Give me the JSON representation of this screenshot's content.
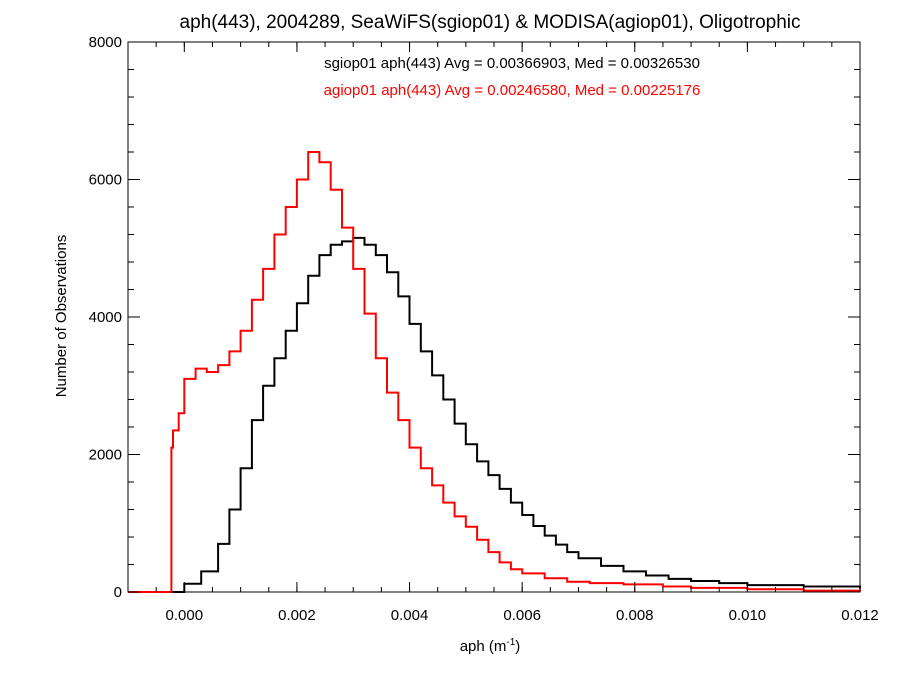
{
  "chart_data": {
    "type": "line",
    "title": "aph(443), 2004289, SeaWiFS(sgiop01) & MODISA(agiop01), Oligotrophic",
    "xlabel": "aph",
    "xlabel_unit_base": "m",
    "xlabel_unit_exponent": "-1",
    "ylabel": "Number of Observations",
    "xlim": [
      -0.001,
      0.012
    ],
    "ylim": [
      0,
      8000
    ],
    "xticks": [
      0.0,
      0.002,
      0.004,
      0.006,
      0.008,
      0.01,
      0.012
    ],
    "xtick_labels": [
      "0.000",
      "0.002",
      "0.004",
      "0.006",
      "0.008",
      "0.010",
      "0.012"
    ],
    "yticks": [
      0,
      2000,
      4000,
      6000,
      8000
    ],
    "ytick_labels": [
      "0",
      "2000",
      "4000",
      "6000",
      "8000"
    ],
    "grid": false,
    "annotations": [
      {
        "text": "sgiop01 aph(443) Avg = 0.00366903, Med = 0.00326530",
        "color": "#000000"
      },
      {
        "text": "agiop01 aph(443) Avg = 0.00246580, Med = 0.00225176",
        "color": "#ff0000"
      }
    ],
    "series": [
      {
        "color": "#000000",
        "style": "step",
        "points": [
          [
            -0.001,
            0
          ],
          [
            -0.0003,
            0
          ],
          [
            0.0,
            120
          ],
          [
            0.0003,
            300
          ],
          [
            0.0006,
            700
          ],
          [
            0.0008,
            1200
          ],
          [
            0.001,
            1800
          ],
          [
            0.0012,
            2500
          ],
          [
            0.0014,
            3000
          ],
          [
            0.0016,
            3400
          ],
          [
            0.0018,
            3800
          ],
          [
            0.002,
            4200
          ],
          [
            0.0022,
            4600
          ],
          [
            0.0024,
            4900
          ],
          [
            0.0026,
            5050
          ],
          [
            0.0028,
            5100
          ],
          [
            0.003,
            5150
          ],
          [
            0.0032,
            5050
          ],
          [
            0.0034,
            4900
          ],
          [
            0.0036,
            4650
          ],
          [
            0.0038,
            4300
          ],
          [
            0.004,
            3900
          ],
          [
            0.0042,
            3500
          ],
          [
            0.0044,
            3150
          ],
          [
            0.0046,
            2800
          ],
          [
            0.0048,
            2450
          ],
          [
            0.005,
            2150
          ],
          [
            0.0052,
            1900
          ],
          [
            0.0054,
            1700
          ],
          [
            0.0056,
            1500
          ],
          [
            0.0058,
            1300
          ],
          [
            0.006,
            1120
          ],
          [
            0.0062,
            960
          ],
          [
            0.0064,
            820
          ],
          [
            0.0066,
            690
          ],
          [
            0.0068,
            580
          ],
          [
            0.007,
            490
          ],
          [
            0.0074,
            380
          ],
          [
            0.0078,
            300
          ],
          [
            0.0082,
            240
          ],
          [
            0.0086,
            190
          ],
          [
            0.009,
            160
          ],
          [
            0.0095,
            130
          ],
          [
            0.01,
            100
          ],
          [
            0.011,
            80
          ],
          [
            0.012,
            50
          ]
        ]
      },
      {
        "color": "#ff0000",
        "style": "step",
        "points": [
          [
            -0.001,
            0
          ],
          [
            -0.00025,
            0
          ],
          [
            -0.00023,
            2100
          ],
          [
            -0.0002,
            2350
          ],
          [
            -0.0001,
            2600
          ],
          [
            0.0,
            3100
          ],
          [
            0.0002,
            3250
          ],
          [
            0.0004,
            3200
          ],
          [
            0.0006,
            3300
          ],
          [
            0.0008,
            3500
          ],
          [
            0.001,
            3800
          ],
          [
            0.0012,
            4250
          ],
          [
            0.0014,
            4700
          ],
          [
            0.0016,
            5200
          ],
          [
            0.0018,
            5600
          ],
          [
            0.002,
            6000
          ],
          [
            0.0022,
            6400
          ],
          [
            0.0024,
            6250
          ],
          [
            0.0026,
            5850
          ],
          [
            0.0028,
            5300
          ],
          [
            0.003,
            4700
          ],
          [
            0.0032,
            4050
          ],
          [
            0.0034,
            3400
          ],
          [
            0.0036,
            2900
          ],
          [
            0.0038,
            2500
          ],
          [
            0.004,
            2100
          ],
          [
            0.0042,
            1800
          ],
          [
            0.0044,
            1550
          ],
          [
            0.0046,
            1300
          ],
          [
            0.0048,
            1100
          ],
          [
            0.005,
            950
          ],
          [
            0.0052,
            760
          ],
          [
            0.0054,
            580
          ],
          [
            0.0056,
            430
          ],
          [
            0.0058,
            330
          ],
          [
            0.006,
            270
          ],
          [
            0.0064,
            200
          ],
          [
            0.0068,
            150
          ],
          [
            0.0072,
            130
          ],
          [
            0.0078,
            110
          ],
          [
            0.0085,
            80
          ],
          [
            0.009,
            60
          ],
          [
            0.01,
            40
          ],
          [
            0.011,
            20
          ],
          [
            0.012,
            10
          ]
        ]
      }
    ]
  }
}
